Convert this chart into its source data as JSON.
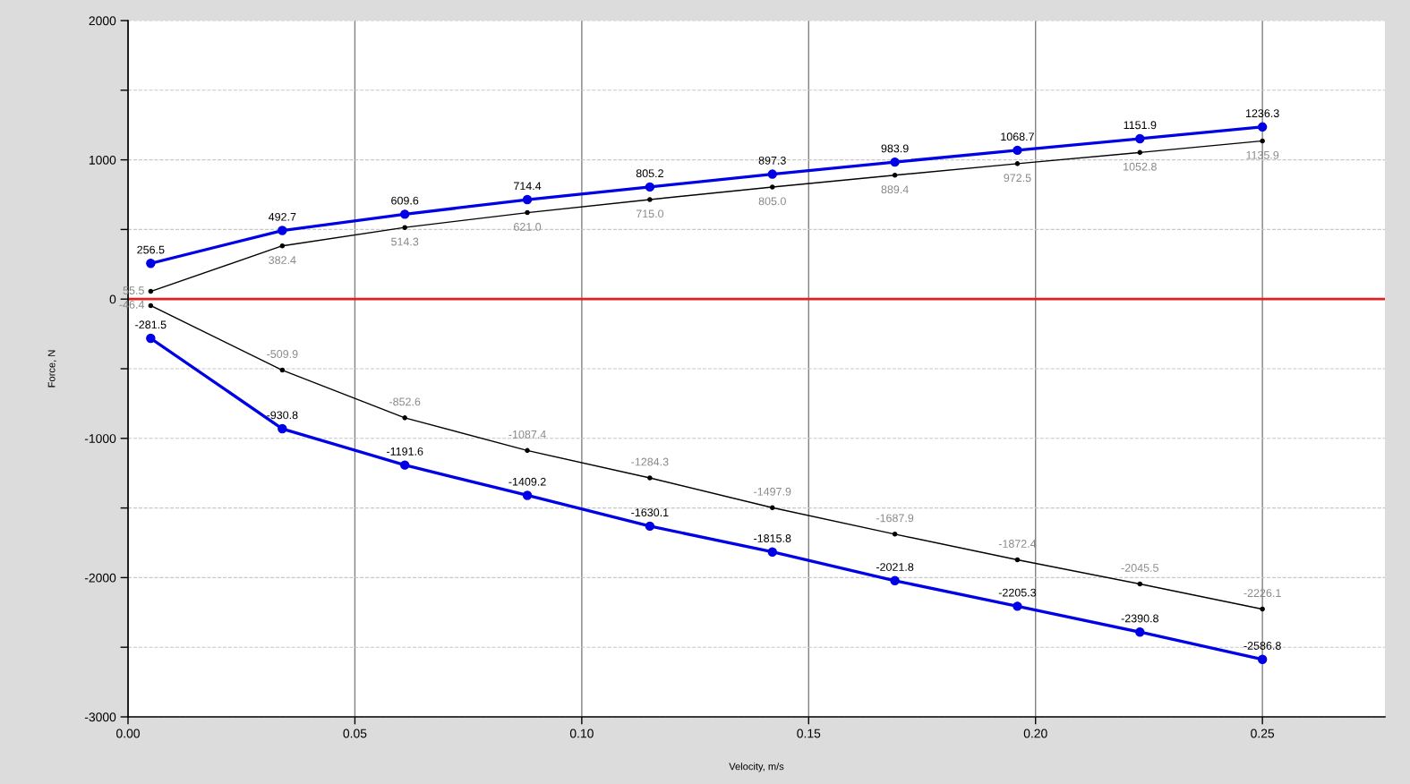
{
  "chart_data": {
    "type": "line",
    "xlabel": "Velocity, m/s",
    "ylabel": "Force, N",
    "x": [
      0.005,
      0.034,
      0.061,
      0.088,
      0.115,
      0.142,
      0.169,
      0.196,
      0.223,
      0.25
    ],
    "series": [
      {
        "color": "#0000e6",
        "values": [
          256.5,
          492.7,
          609.6,
          714.4,
          805.2,
          897.3,
          983.9,
          1068.7,
          1151.9,
          1236.3
        ],
        "value_labels": [
          "256.5",
          "492.7",
          "609.6",
          "714.4",
          "805.2",
          "897.3",
          "983.9",
          "1068.7",
          "1151.9",
          "1236.3"
        ]
      },
      {
        "color": "#000000",
        "values": [
          55.5,
          382.4,
          514.3,
          621.0,
          715.0,
          805.0,
          889.4,
          972.5,
          1052.8,
          1135.9
        ],
        "value_labels": [
          "55.5",
          "382.4",
          "514.3",
          "621.0",
          "715.0",
          "805.0",
          "889.4",
          "972.5",
          "1052.8",
          "1135.9"
        ]
      },
      {
        "color": "#000000",
        "values": [
          -46.4,
          -509.9,
          -852.6,
          -1087.4,
          -1284.3,
          -1497.9,
          -1687.9,
          -1872.4,
          -2045.5,
          -2226.1
        ],
        "value_labels": [
          "-46.4",
          "-509.9",
          "-852.6",
          "-1087.4",
          "-1284.3",
          "-1497.9",
          "-1687.9",
          "-1872.4",
          "-2045.5",
          "-2226.1"
        ]
      },
      {
        "color": "#0000e6",
        "values": [
          -281.5,
          -930.8,
          -1191.6,
          -1409.2,
          -1630.1,
          -1815.8,
          -2021.8,
          -2205.3,
          -2390.8,
          -2586.8
        ],
        "value_labels": [
          "-281.5",
          "-930.8",
          "-1191.6",
          "-1409.2",
          "-1630.1",
          "-1815.8",
          "-2021.8",
          "-2205.3",
          "-2390.8",
          "-2586.8"
        ]
      }
    ],
    "xlim": [
      0,
      0.277
    ],
    "ylim": [
      -3000,
      2000
    ],
    "xticks": [
      {
        "value": 0,
        "label": "0.00"
      },
      {
        "value": 0.05,
        "label": "0.05"
      },
      {
        "value": 0.1,
        "label": "0.10"
      },
      {
        "value": 0.15,
        "label": "0.15"
      },
      {
        "value": 0.2,
        "label": "0.20"
      },
      {
        "value": 0.25,
        "label": "0.25"
      }
    ],
    "yticks": [
      -3000,
      {
        "value": -2500,
        "label": null
      },
      -2000,
      {
        "value": -1500,
        "label": null
      },
      -1000,
      {
        "value": -500,
        "label": null
      },
      0,
      {
        "value": 500,
        "label": null
      },
      1000,
      {
        "value": 1500,
        "label": null
      },
      2000
    ],
    "ref_lines": [
      {
        "axis": "y",
        "value": 0,
        "color": "#e32020"
      }
    ],
    "grid": true,
    "marker": "circle",
    "line_style": "solid"
  }
}
